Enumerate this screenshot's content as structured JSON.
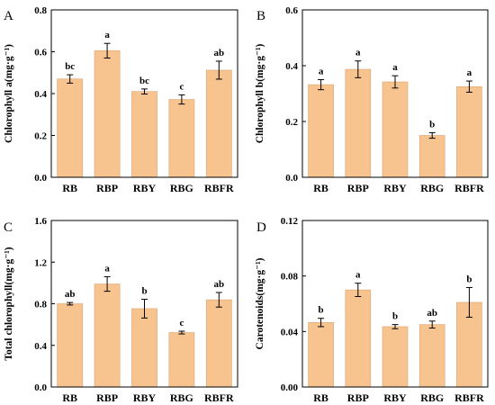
{
  "colors": {
    "bar": "#F7C38F",
    "bar_edge": "#D9A574",
    "axis": "#000000"
  },
  "chart_data": [
    {
      "panel_label": "A",
      "type": "bar",
      "ylabel": "Chlorophyll a(mg·g⁻¹)",
      "ylim": [
        0,
        0.8
      ],
      "yticks": [
        "0.0",
        "0.2",
        "0.4",
        "0.6",
        "0.8"
      ],
      "categories": [
        "RB",
        "RBP",
        "RBY",
        "RBG",
        "RBFR"
      ],
      "values": [
        0.47,
        0.605,
        0.41,
        0.372,
        0.512
      ],
      "errors": [
        0.02,
        0.035,
        0.012,
        0.022,
        0.043
      ],
      "significance": [
        "bc",
        "a",
        "bc",
        "c",
        "ab"
      ]
    },
    {
      "panel_label": "B",
      "type": "bar",
      "ylabel": "Chlorophyll b(mg·g⁻¹)",
      "ylim": [
        0,
        0.6
      ],
      "yticks": [
        "0.0",
        "0.2",
        "0.4",
        "0.6"
      ],
      "categories": [
        "RB",
        "RBP",
        "RBY",
        "RBG",
        "RBFR"
      ],
      "values": [
        0.332,
        0.387,
        0.342,
        0.15,
        0.325
      ],
      "errors": [
        0.018,
        0.03,
        0.022,
        0.01,
        0.02
      ],
      "significance": [
        "a",
        "a",
        "a",
        "b",
        "a"
      ]
    },
    {
      "panel_label": "C",
      "type": "bar",
      "ylabel": "Total chlorophyll(mg·g⁻¹)",
      "ylim": [
        0,
        1.6
      ],
      "yticks": [
        "0.0",
        "0.4",
        "0.8",
        "1.2",
        "1.6"
      ],
      "categories": [
        "RB",
        "RBP",
        "RBY",
        "RBG",
        "RBFR"
      ],
      "values": [
        0.8,
        0.99,
        0.753,
        0.523,
        0.838
      ],
      "errors": [
        0.012,
        0.07,
        0.09,
        0.013,
        0.07
      ],
      "significance": [
        "ab",
        "a",
        "b",
        "c",
        "ab"
      ]
    },
    {
      "panel_label": "D",
      "type": "bar",
      "ylabel": "Carotenoids(mg·g⁻¹)",
      "ylim": [
        0,
        0.12
      ],
      "yticks": [
        "0.00",
        "0.04",
        "0.08",
        "0.12"
      ],
      "categories": [
        "RB",
        "RBP",
        "RBY",
        "RBG",
        "RBFR"
      ],
      "values": [
        0.0465,
        0.07,
        0.0435,
        0.045,
        0.061
      ],
      "errors": [
        0.003,
        0.0048,
        0.0015,
        0.0025,
        0.0107
      ],
      "significance": [
        "b",
        "a",
        "b",
        "ab",
        "b"
      ]
    }
  ]
}
